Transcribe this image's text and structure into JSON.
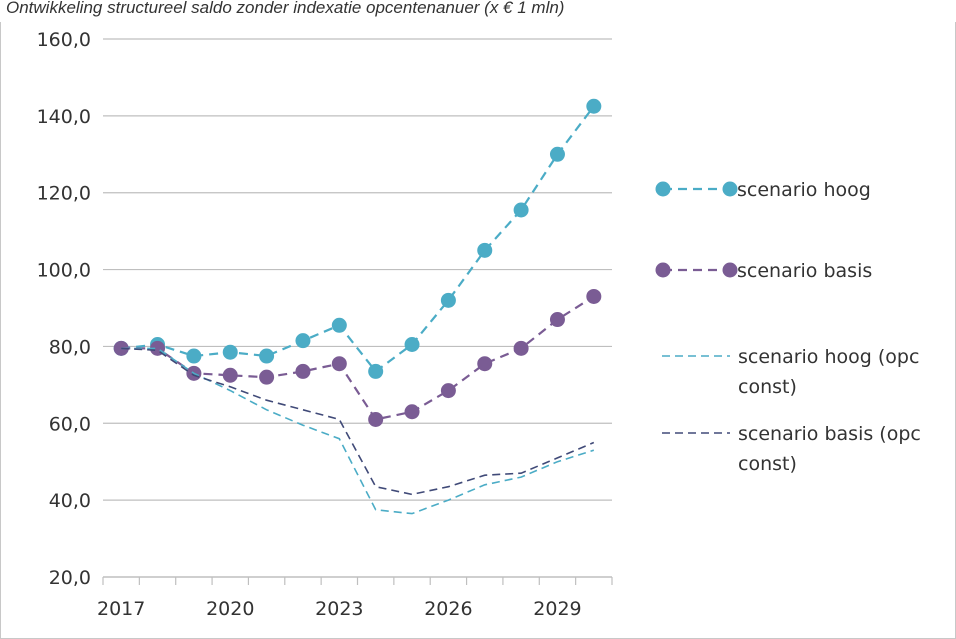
{
  "chart_data": {
    "type": "line",
    "title": "Ontwikkeling structureel saldo zonder indexatie opcentenanuer (x € 1 mln)",
    "xlabel": "",
    "ylabel": "",
    "x": [
      2017,
      2018,
      2019,
      2020,
      2021,
      2022,
      2023,
      2024,
      2025,
      2026,
      2027,
      2028,
      2029,
      2030
    ],
    "x_ticks": [
      "2017",
      "2020",
      "2023",
      "2026",
      "2029"
    ],
    "y_ticks": [
      "20,0",
      "40,0",
      "60,0",
      "80,0",
      "100,0",
      "120,0",
      "140,0",
      "160,0"
    ],
    "ylim": [
      20,
      160
    ],
    "grid": true,
    "legend_position": "right",
    "series": [
      {
        "name": "scenario hoog",
        "style": "dashed-markers",
        "color": "#4bacc6",
        "values": [
          79.5,
          80.5,
          77.5,
          78.5,
          77.5,
          81.5,
          85.5,
          73.5,
          80.5,
          92.0,
          105.0,
          115.5,
          130.0,
          142.5
        ]
      },
      {
        "name": "scenario basis",
        "style": "dashed-markers",
        "color": "#7a5c94",
        "values": [
          79.5,
          79.5,
          73.0,
          72.5,
          72.0,
          73.5,
          75.5,
          61.0,
          63.0,
          68.5,
          75.5,
          79.5,
          87.0,
          93.0
        ]
      },
      {
        "name": "scenario hoog (opc const)",
        "label_lines": [
          "scenario hoog (opc",
          "const)"
        ],
        "style": "dashed",
        "color": "#4bacc6",
        "values": [
          79.5,
          79.5,
          73.0,
          68.5,
          63.5,
          59.5,
          56.0,
          37.5,
          36.5,
          40.0,
          44.0,
          46.0,
          50.0,
          53.0
        ]
      },
      {
        "name": "scenario basis (opc const)",
        "label_lines": [
          "scenario basis (opc",
          "const)"
        ],
        "style": "dashed",
        "color": "#404a78",
        "values": [
          79.5,
          79.0,
          72.5,
          69.5,
          66.0,
          63.5,
          61.0,
          43.5,
          41.5,
          43.5,
          46.5,
          47.0,
          51.0,
          55.0
        ]
      }
    ]
  }
}
